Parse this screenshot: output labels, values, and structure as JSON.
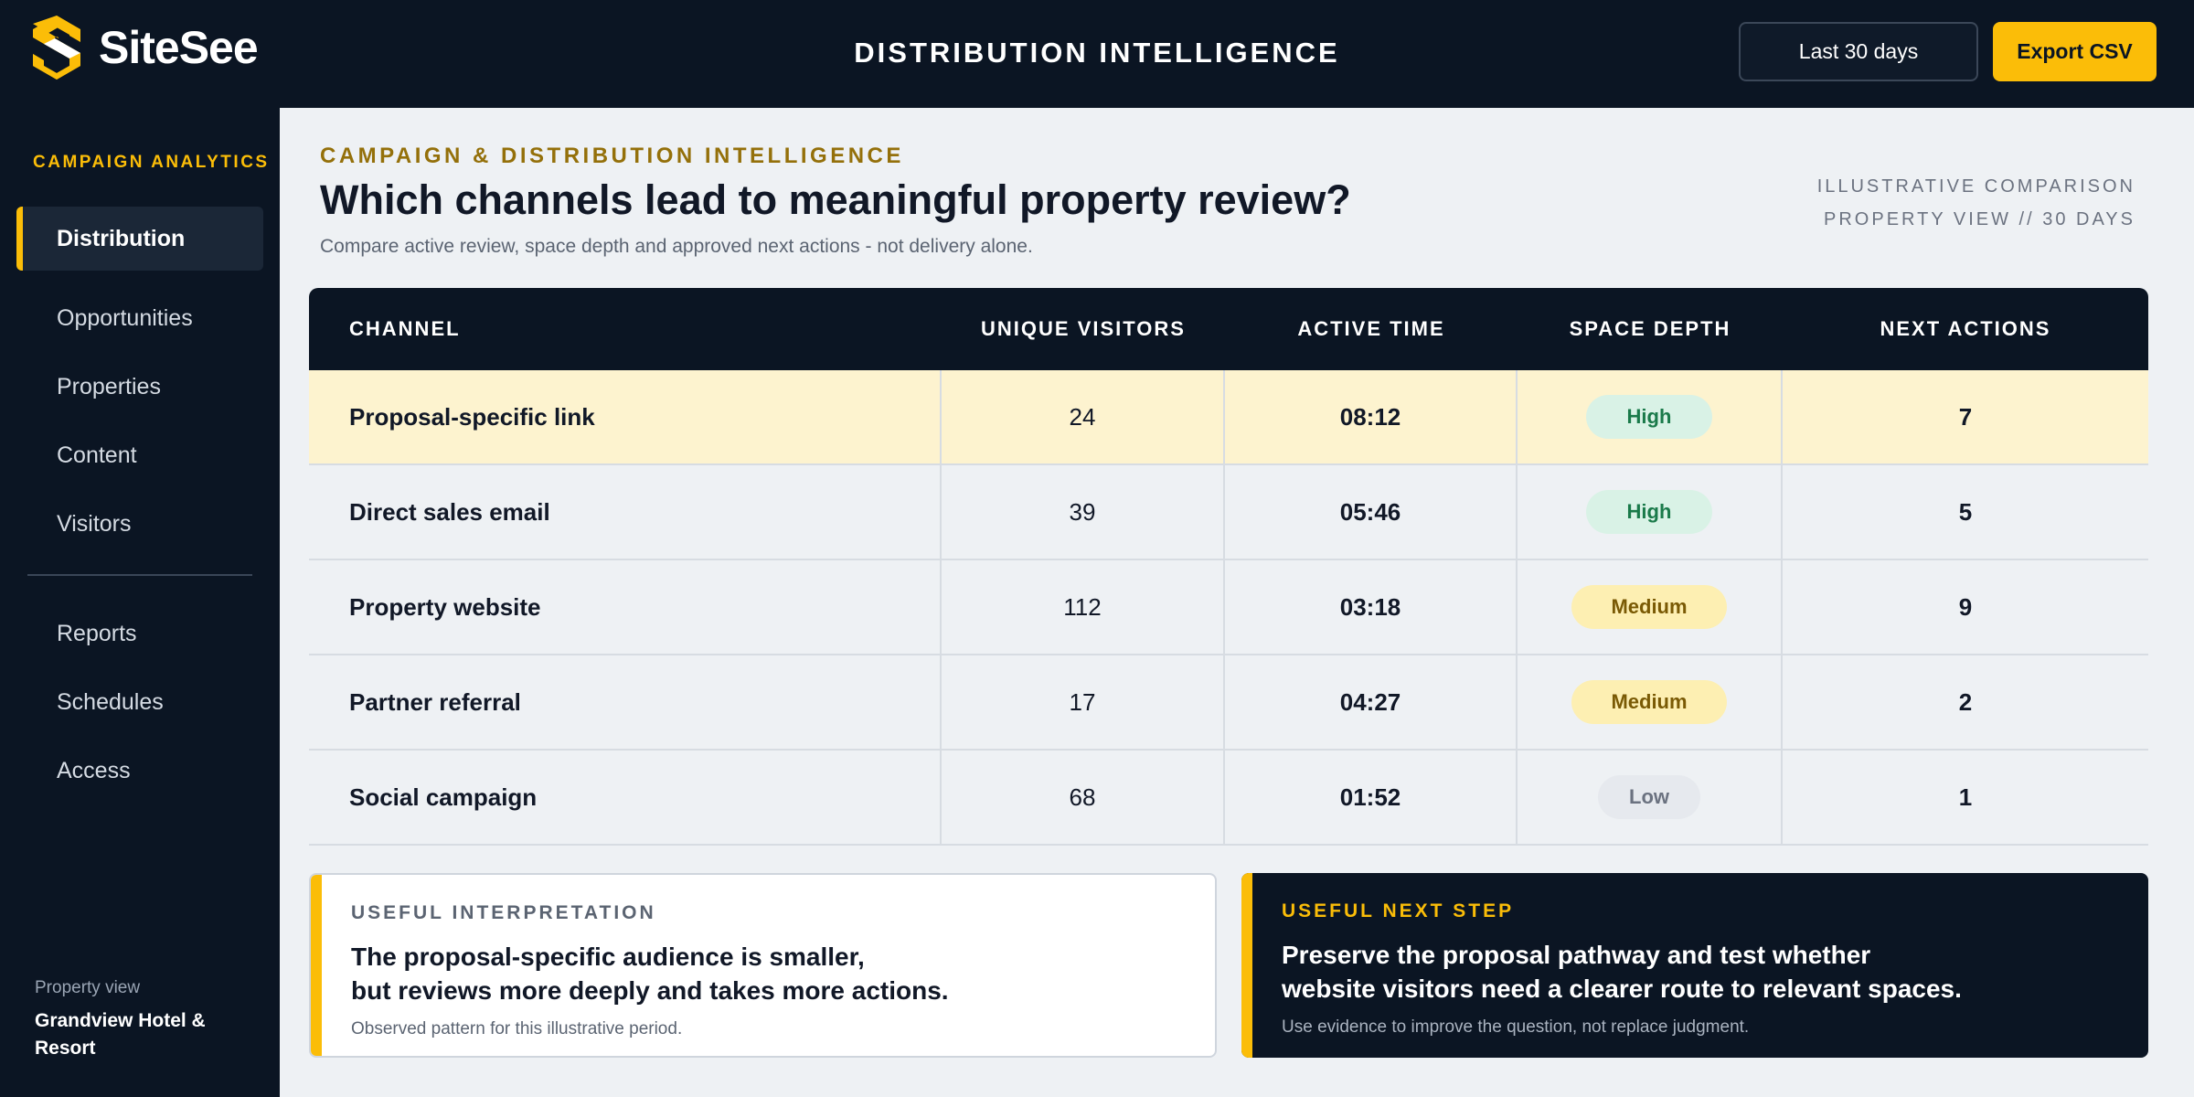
{
  "app": {
    "name": "SiteSee",
    "page_title": "DISTRIBUTION INTELLIGENCE"
  },
  "header": {
    "date_range": "Last 30 days",
    "export_label": "Export CSV"
  },
  "sidebar": {
    "section": "CAMPAIGN ANALYTICS",
    "items": [
      {
        "label": "Distribution",
        "active": true
      },
      {
        "label": "Opportunities"
      },
      {
        "label": "Properties"
      },
      {
        "label": "Content"
      },
      {
        "label": "Visitors"
      },
      {
        "label": "Reports"
      },
      {
        "label": "Schedules"
      },
      {
        "label": "Access"
      }
    ],
    "property_label": "Property view",
    "property_name": "Grandview Hotel & Resort"
  },
  "main": {
    "eyebrow": "CAMPAIGN & DISTRIBUTION INTELLIGENCE",
    "title": "Which channels lead to meaningful property review?",
    "subtitle": "Compare active review, space depth and approved next actions - not delivery alone.",
    "meta_line1": "ILLUSTRATIVE COMPARISON",
    "meta_line2": "PROPERTY VIEW // 30 DAYS"
  },
  "table": {
    "columns": [
      "CHANNEL",
      "UNIQUE VISITORS",
      "ACTIVE TIME",
      "SPACE DEPTH",
      "NEXT ACTIONS"
    ],
    "rows": [
      {
        "channel": "Proposal-specific link",
        "visitors": "24",
        "active_time": "08:12",
        "depth": "High",
        "next_actions": "7"
      },
      {
        "channel": "Direct sales email",
        "visitors": "39",
        "active_time": "05:46",
        "depth": "High",
        "next_actions": "5"
      },
      {
        "channel": "Property website",
        "visitors": "112",
        "active_time": "03:18",
        "depth": "Medium",
        "next_actions": "9"
      },
      {
        "channel": "Partner referral",
        "visitors": "17",
        "active_time": "04:27",
        "depth": "Medium",
        "next_actions": "2"
      },
      {
        "channel": "Social campaign",
        "visitors": "68",
        "active_time": "01:52",
        "depth": "Low",
        "next_actions": "1"
      }
    ]
  },
  "cards": {
    "interpretation": {
      "eyebrow": "USEFUL INTERPRETATION",
      "line1": "The proposal-specific audience is smaller,",
      "line2": "but reviews more deeply and takes more actions.",
      "note": "Observed pattern for this illustrative period."
    },
    "next_step": {
      "eyebrow": "USEFUL NEXT STEP",
      "line1": "Preserve the proposal pathway and test whether",
      "line2": "website visitors need a clearer route to relevant spaces.",
      "note": "Use evidence to improve the question, not replace judgment."
    }
  },
  "colors": {
    "navy": "#0b1523",
    "accent": "#fbbd08",
    "highlight_row": "#fdf3cf"
  }
}
